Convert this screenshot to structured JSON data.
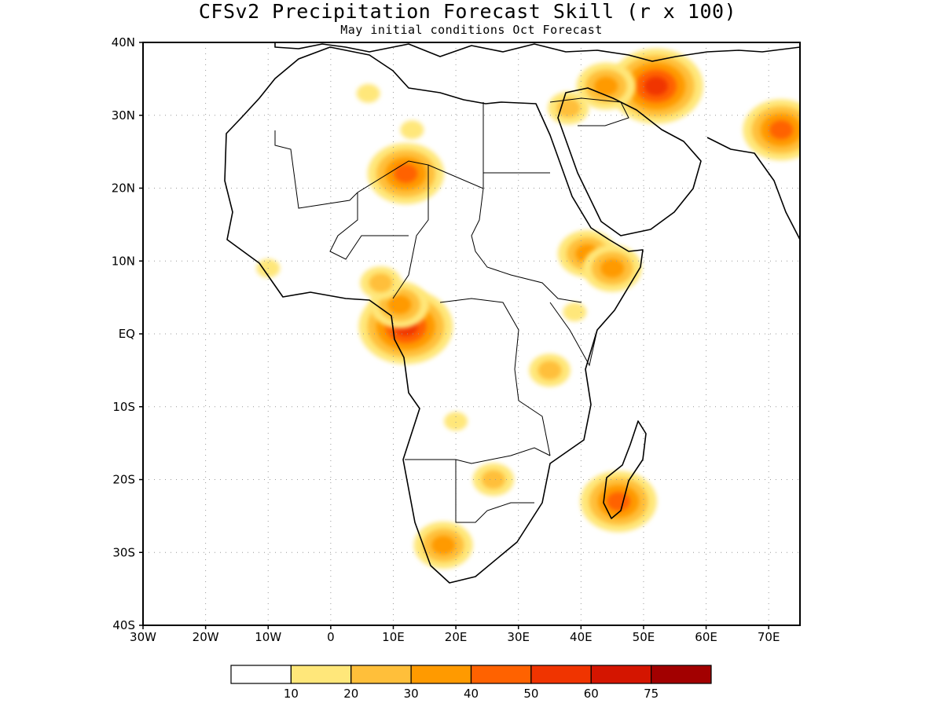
{
  "title": "CFSv2 Precipitation Forecast Skill (r x 100)",
  "subtitle": "May initial conditions  Oct Forecast",
  "map": {
    "lon_range": [
      -30,
      75
    ],
    "lat_range": [
      -40,
      40
    ],
    "lat_ticks": [
      {
        "value": 40,
        "label": "40N"
      },
      {
        "value": 30,
        "label": "30N"
      },
      {
        "value": 20,
        "label": "20N"
      },
      {
        "value": 10,
        "label": "10N"
      },
      {
        "value": 0,
        "label": "EQ"
      },
      {
        "value": -10,
        "label": "10S"
      },
      {
        "value": -20,
        "label": "20S"
      },
      {
        "value": -30,
        "label": "30S"
      },
      {
        "value": -40,
        "label": "40S"
      }
    ],
    "lon_ticks": [
      {
        "value": -30,
        "label": "30W"
      },
      {
        "value": -20,
        "label": "20W"
      },
      {
        "value": -10,
        "label": "10W"
      },
      {
        "value": 0,
        "label": "0"
      },
      {
        "value": 10,
        "label": "10E"
      },
      {
        "value": 20,
        "label": "20E"
      },
      {
        "value": 30,
        "label": "30E"
      },
      {
        "value": 40,
        "label": "40E"
      },
      {
        "value": 50,
        "label": "50E"
      },
      {
        "value": 60,
        "label": "60E"
      },
      {
        "value": 70,
        "label": "70E"
      }
    ],
    "skill_patches": [
      {
        "lon": 52,
        "lat": 34,
        "level": 5
      },
      {
        "lon": 44,
        "lat": 34,
        "level": 3
      },
      {
        "lon": 38,
        "lat": 31,
        "level": 2
      },
      {
        "lon": 72,
        "lat": 28,
        "level": 4
      },
      {
        "lon": 41,
        "lat": 11,
        "level": 3
      },
      {
        "lon": 45,
        "lat": 9,
        "level": 3
      },
      {
        "lon": 12,
        "lat": 22,
        "level": 4
      },
      {
        "lon": 13,
        "lat": 28,
        "level": 1
      },
      {
        "lon": 6,
        "lat": 33,
        "level": 1
      },
      {
        "lon": 12,
        "lat": 1,
        "level": 5
      },
      {
        "lon": 11,
        "lat": 4,
        "level": 3
      },
      {
        "lon": 35,
        "lat": -5,
        "level": 2
      },
      {
        "lon": 46,
        "lat": -23,
        "level": 4
      },
      {
        "lon": 18,
        "lat": -29,
        "level": 3
      },
      {
        "lon": 26,
        "lat": -20,
        "level": 2
      },
      {
        "lon": 8,
        "lat": 7,
        "level": 2
      },
      {
        "lon": -10,
        "lat": 9,
        "level": 1
      },
      {
        "lon": 20,
        "lat": -12,
        "level": 1
      },
      {
        "lon": 39,
        "lat": 3,
        "level": 1
      }
    ]
  },
  "colorbar": {
    "colors": [
      "#ffffff",
      "#ffe77a",
      "#ffbf3a",
      "#ff9a00",
      "#ff6200",
      "#f03400",
      "#d41500",
      "#a20000"
    ],
    "labels": [
      "10",
      "20",
      "30",
      "40",
      "50",
      "60",
      "75"
    ]
  }
}
